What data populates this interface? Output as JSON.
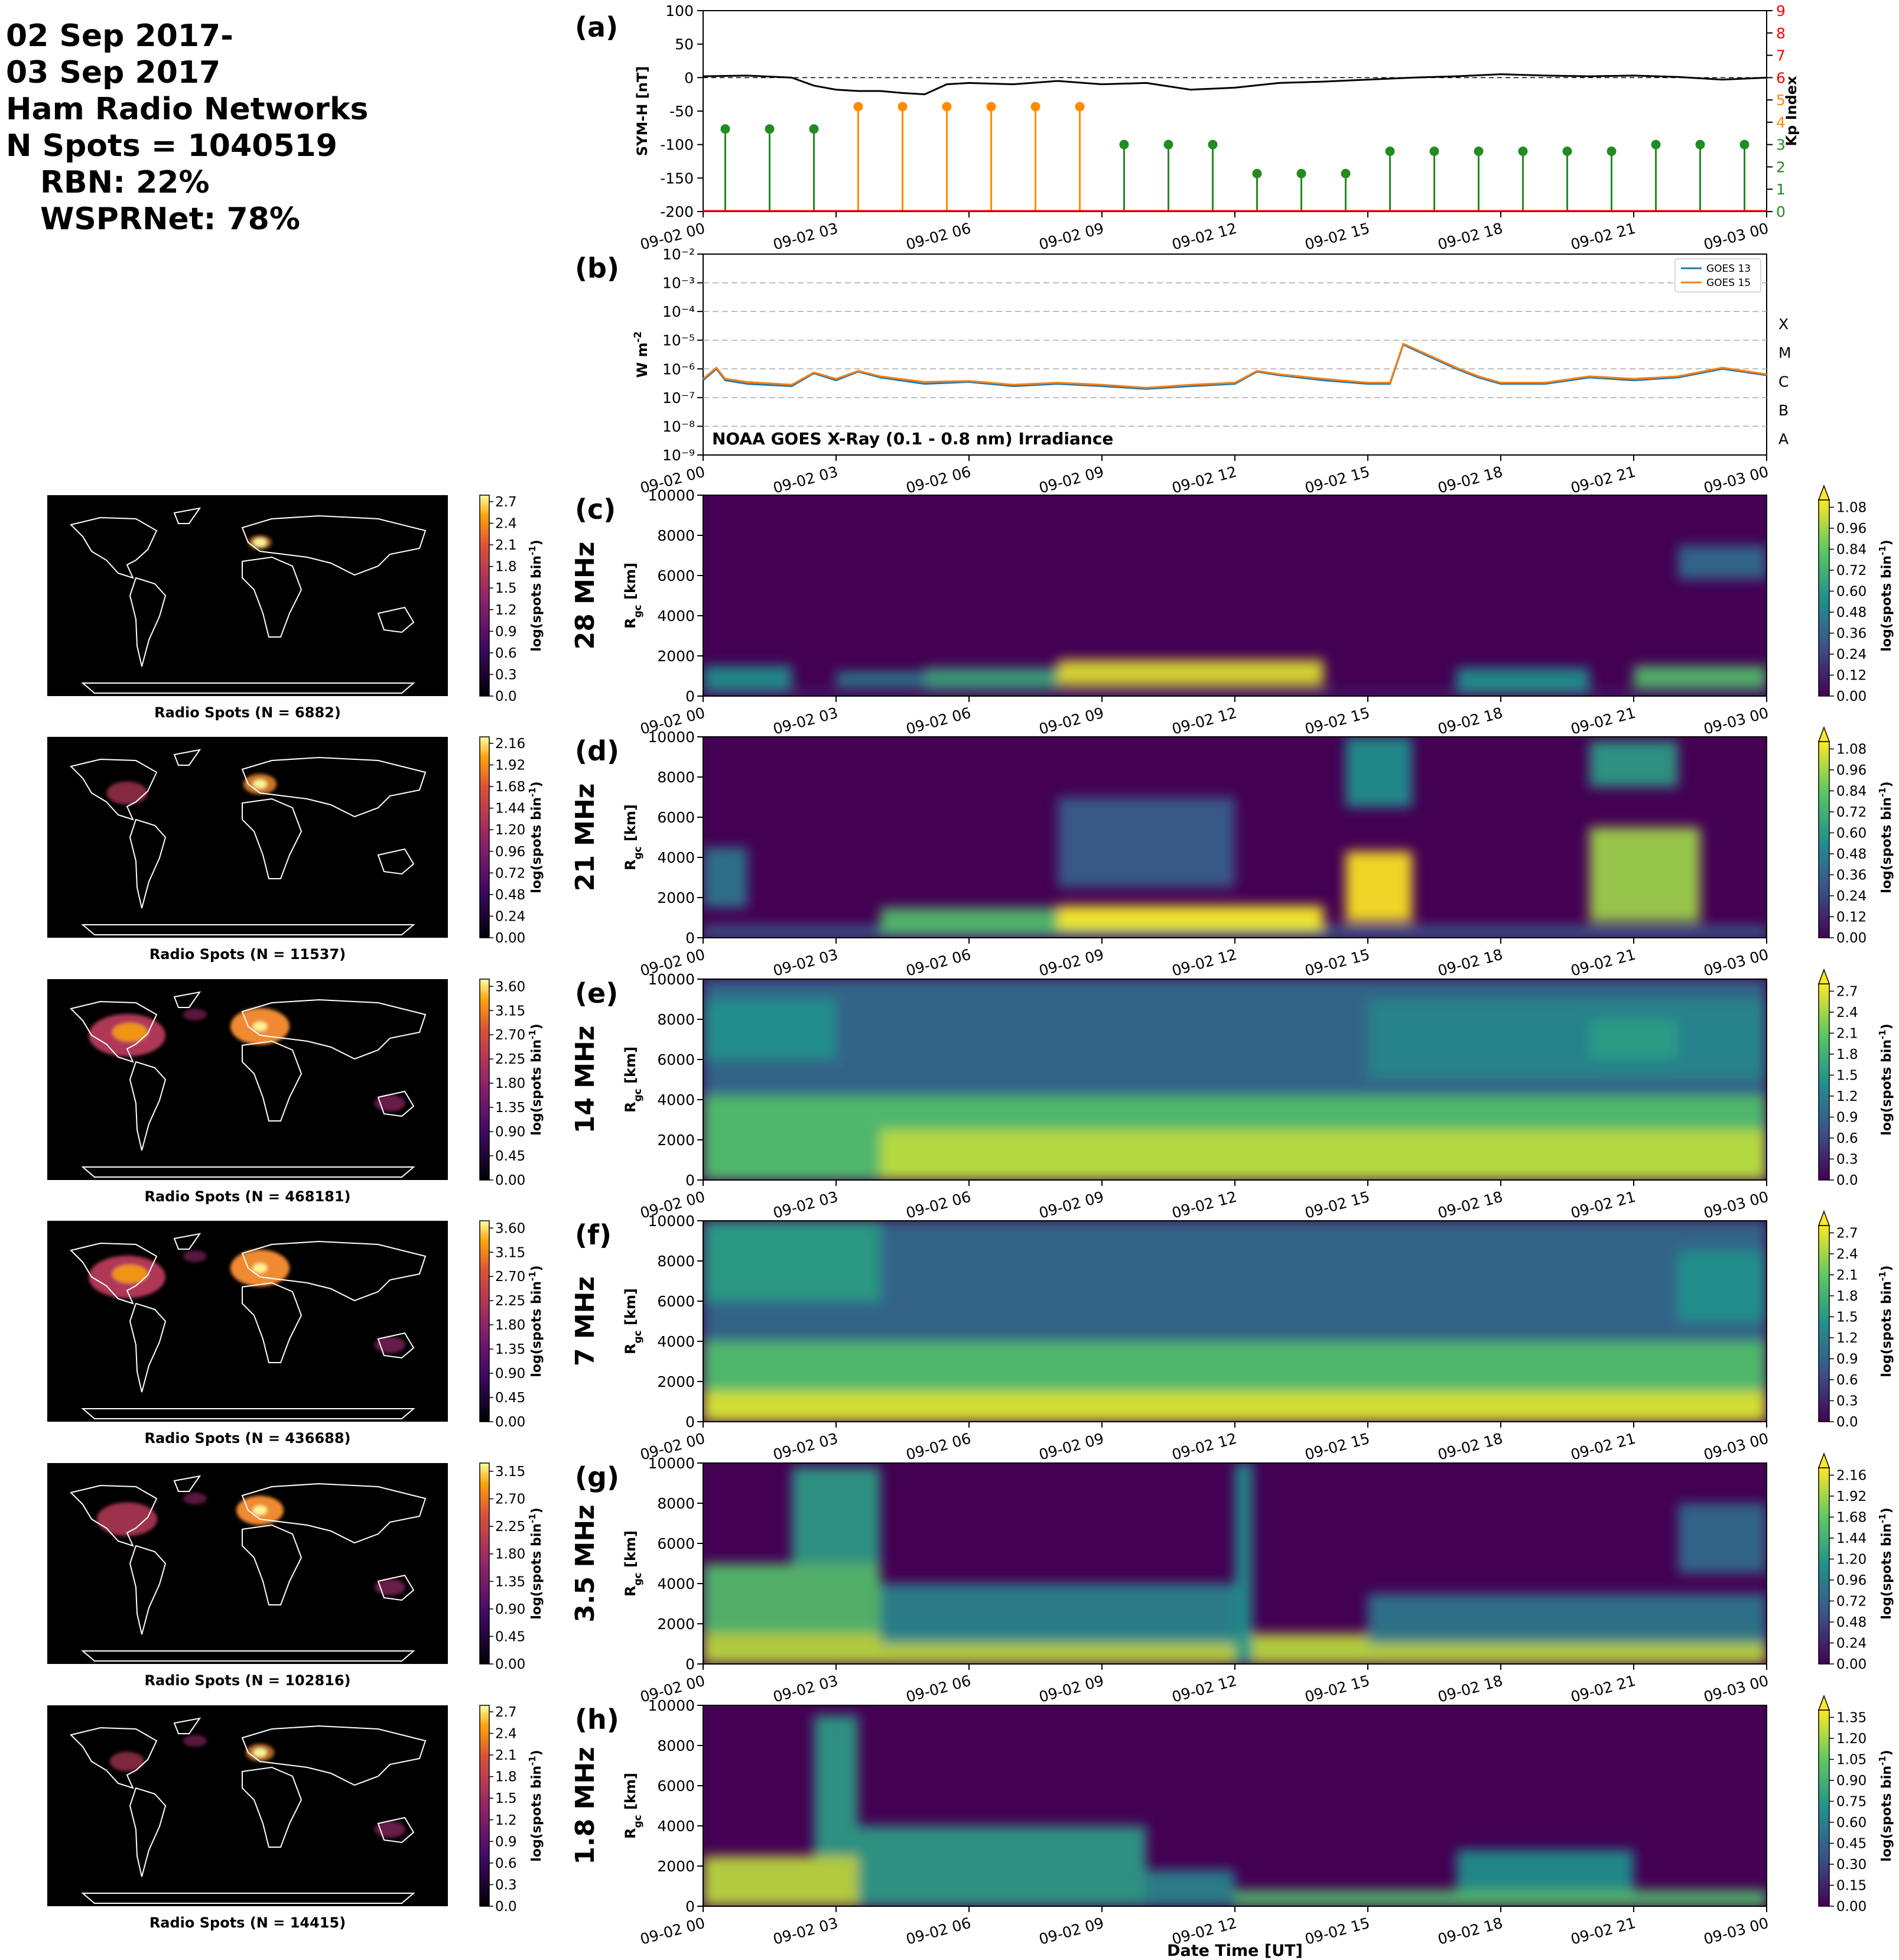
{
  "header": {
    "date_line1": "02 Sep 2017-",
    "date_line2": "03 Sep 2017",
    "network_title": "Ham Radio Networks",
    "n_spots": "N Spots = 1040519",
    "rbn": "RBN: 22%",
    "wsprnet": "WSPRNet: 78%"
  },
  "time_ticks": [
    "09-02 00",
    "09-02 03",
    "09-02 06",
    "09-02 09",
    "09-02 12",
    "09-02 15",
    "09-02 18",
    "09-02 21",
    "09-03 00"
  ],
  "xlabel": "Date Time [UT]",
  "colors": {
    "symh": "#000000",
    "kp_green": "#228b22",
    "kp_orange": "#ff8c00",
    "kp_axis": "#ff0000",
    "goes13": "#1f77b4",
    "goes15": "#ff7f0e"
  },
  "chart_data": [
    {
      "panel": "(a)",
      "type": "line",
      "ylabel": "SYM-H [nT]",
      "ylim": [
        -200,
        100
      ],
      "yticks": [
        "100",
        "50",
        "0",
        "-50",
        "-100",
        "-150",
        "-200"
      ],
      "x_hours": [
        0,
        1,
        2,
        2.5,
        3,
        3.5,
        4,
        4.5,
        5,
        5.5,
        6,
        7,
        8,
        9,
        10,
        11,
        12,
        13,
        14,
        15,
        16,
        17,
        18,
        19,
        20,
        21,
        22,
        23,
        24
      ],
      "values": [
        2,
        3,
        0,
        -12,
        -18,
        -20,
        -20,
        -23,
        -25,
        -10,
        -8,
        -10,
        -5,
        -10,
        -8,
        -18,
        -15,
        -8,
        -6,
        -3,
        0,
        2,
        5,
        3,
        2,
        3,
        1,
        -3,
        0
      ],
      "right_axis": {
        "label": "Kp Index",
        "ylim": [
          0,
          9
        ],
        "ticks": [
          "0",
          "1",
          "2",
          "3",
          "4",
          "5",
          "6",
          "7",
          "8",
          "9"
        ],
        "type": "stem",
        "x_hours": [
          0,
          1,
          2,
          3,
          4,
          5,
          6,
          7,
          8,
          9,
          10,
          11,
          12,
          13,
          14,
          15,
          16,
          17,
          18,
          19,
          20,
          21,
          22,
          23
        ],
        "values": [
          3.7,
          3.7,
          3.7,
          4.7,
          4.7,
          4.7,
          4.7,
          4.7,
          4.7,
          3.0,
          3.0,
          3.0,
          1.7,
          1.7,
          1.7,
          2.7,
          2.7,
          2.7,
          2.7,
          2.7,
          2.7,
          3.0,
          3.0,
          3.0
        ]
      }
    },
    {
      "panel": "(b)",
      "type": "line",
      "ylabel": "W m$^{-2}$",
      "yscale": "log",
      "ylim": [
        1e-09,
        0.01
      ],
      "yticks": [
        "10⁻²",
        "10⁻³",
        "10⁻⁴",
        "10⁻⁵",
        "10⁻⁶",
        "10⁻⁷",
        "10⁻⁸",
        "10⁻⁹"
      ],
      "flare_classes": [
        "X",
        "M",
        "C",
        "B",
        "A"
      ],
      "annotation": "NOAA GOES X-Ray (0.1 - 0.8 nm) Irradiance",
      "x_hours": [
        0,
        0.3,
        0.5,
        1,
        2,
        2.5,
        3,
        3.5,
        4,
        5,
        6,
        7,
        8,
        9,
        10,
        11,
        12,
        12.5,
        13,
        14,
        15,
        15.5,
        15.8,
        16,
        17,
        17.5,
        18,
        19,
        20,
        21,
        22,
        23,
        24
      ],
      "series": [
        {
          "name": "GOES 13",
          "values": [
            4e-07,
            1e-06,
            4e-07,
            3e-07,
            2.5e-07,
            7e-07,
            4e-07,
            8e-07,
            5e-07,
            3e-07,
            3.5e-07,
            2.5e-07,
            3e-07,
            2.5e-07,
            2e-07,
            2.5e-07,
            3e-07,
            8e-07,
            6e-07,
            4e-07,
            3e-07,
            3e-07,
            7e-06,
            5e-06,
            1e-06,
            5e-07,
            3e-07,
            3e-07,
            5e-07,
            4e-07,
            5e-07,
            1e-06,
            6e-07
          ]
        },
        {
          "name": "GOES 15",
          "values": [
            4.5e-07,
            1.1e-06,
            4.5e-07,
            3.5e-07,
            2.8e-07,
            7.5e-07,
            4.5e-07,
            8.5e-07,
            5.5e-07,
            3.5e-07,
            3.8e-07,
            2.8e-07,
            3.3e-07,
            2.8e-07,
            2.2e-07,
            2.8e-07,
            3.3e-07,
            8.5e-07,
            6.5e-07,
            4.5e-07,
            3.3e-07,
            3.3e-07,
            7.5e-06,
            5.5e-06,
            1.1e-06,
            5.5e-07,
            3.3e-07,
            3.3e-07,
            5.5e-07,
            4.5e-07,
            5.5e-07,
            1.1e-06,
            6.5e-07
          ]
        }
      ]
    },
    {
      "panel": "(c)",
      "band": "28 MHz",
      "type": "heatmap",
      "ylabel": "R$_{gc}$ [km]",
      "yticks": [
        "10000",
        "8000",
        "6000",
        "4000",
        "2000",
        "0"
      ],
      "cbar_label": "log(spots bin$^{-1}$)",
      "cbar_ticks": [
        "1.08",
        "0.96",
        "0.84",
        "0.72",
        "0.60",
        "0.48",
        "0.36",
        "0.24",
        "0.12",
        "0.00"
      ],
      "map_caption": "Radio Spots (N = 6882)",
      "map_cbar_ticks": [
        "2.7",
        "2.4",
        "2.1",
        "1.8",
        "1.5",
        "1.2",
        "0.9",
        "0.6",
        "0.3",
        "0.0"
      ]
    },
    {
      "panel": "(d)",
      "band": "21 MHz",
      "type": "heatmap",
      "ylabel": "R$_{gc}$ [km]",
      "yticks": [
        "10000",
        "8000",
        "6000",
        "4000",
        "2000",
        "0"
      ],
      "cbar_label": "log(spots bin$^{-1}$)",
      "cbar_ticks": [
        "1.08",
        "0.96",
        "0.84",
        "0.72",
        "0.60",
        "0.48",
        "0.36",
        "0.24",
        "0.12",
        "0.00"
      ],
      "map_caption": "Radio Spots (N = 11537)",
      "map_cbar_ticks": [
        "2.16",
        "1.92",
        "1.68",
        "1.44",
        "1.20",
        "0.96",
        "0.72",
        "0.48",
        "0.24",
        "0.00"
      ]
    },
    {
      "panel": "(e)",
      "band": "14 MHz",
      "type": "heatmap",
      "ylabel": "R$_{gc}$ [km]",
      "yticks": [
        "10000",
        "8000",
        "6000",
        "4000",
        "2000",
        "0"
      ],
      "cbar_label": "log(spots bin$^{-1}$)",
      "cbar_ticks": [
        "2.7",
        "2.4",
        "2.1",
        "1.8",
        "1.5",
        "1.2",
        "0.9",
        "0.6",
        "0.3",
        "0.0"
      ],
      "map_caption": "Radio Spots (N = 468181)",
      "map_cbar_ticks": [
        "3.60",
        "3.15",
        "2.70",
        "2.25",
        "1.80",
        "1.35",
        "0.90",
        "0.45",
        "0.00"
      ]
    },
    {
      "panel": "(f)",
      "band": "7 MHz",
      "type": "heatmap",
      "ylabel": "R$_{gc}$ [km]",
      "yticks": [
        "10000",
        "8000",
        "6000",
        "4000",
        "2000",
        "0"
      ],
      "cbar_label": "log(spots bin$^{-1}$)",
      "cbar_ticks": [
        "2.7",
        "2.4",
        "2.1",
        "1.8",
        "1.5",
        "1.2",
        "0.9",
        "0.6",
        "0.3",
        "0.0"
      ],
      "map_caption": "Radio Spots (N = 436688)",
      "map_cbar_ticks": [
        "3.60",
        "3.15",
        "2.70",
        "2.25",
        "1.80",
        "1.35",
        "0.90",
        "0.45",
        "0.00"
      ]
    },
    {
      "panel": "(g)",
      "band": "3.5 MHz",
      "type": "heatmap",
      "ylabel": "R$_{gc}$ [km]",
      "yticks": [
        "10000",
        "8000",
        "6000",
        "4000",
        "2000",
        "0"
      ],
      "cbar_label": "log(spots bin$^{-1}$)",
      "cbar_ticks": [
        "2.16",
        "1.92",
        "1.68",
        "1.44",
        "1.20",
        "0.96",
        "0.72",
        "0.48",
        "0.24",
        "0.00"
      ],
      "map_caption": "Radio Spots (N = 102816)",
      "map_cbar_ticks": [
        "3.15",
        "2.70",
        "2.25",
        "1.80",
        "1.35",
        "0.90",
        "0.45",
        "0.00"
      ]
    },
    {
      "panel": "(h)",
      "band": "1.8 MHz",
      "type": "heatmap",
      "ylabel": "R$_{gc}$ [km]",
      "yticks": [
        "10000",
        "8000",
        "6000",
        "4000",
        "2000",
        "0"
      ],
      "cbar_label": "log(spots bin$^{-1}$)",
      "cbar_ticks": [
        "1.35",
        "1.20",
        "1.05",
        "0.90",
        "0.75",
        "0.60",
        "0.45",
        "0.30",
        "0.15",
        "0.00"
      ],
      "map_caption": "Radio Spots (N = 14415)",
      "map_cbar_ticks": [
        "2.7",
        "2.4",
        "2.1",
        "1.8",
        "1.5",
        "1.2",
        "0.9",
        "0.6",
        "0.3",
        "0.0"
      ]
    }
  ]
}
